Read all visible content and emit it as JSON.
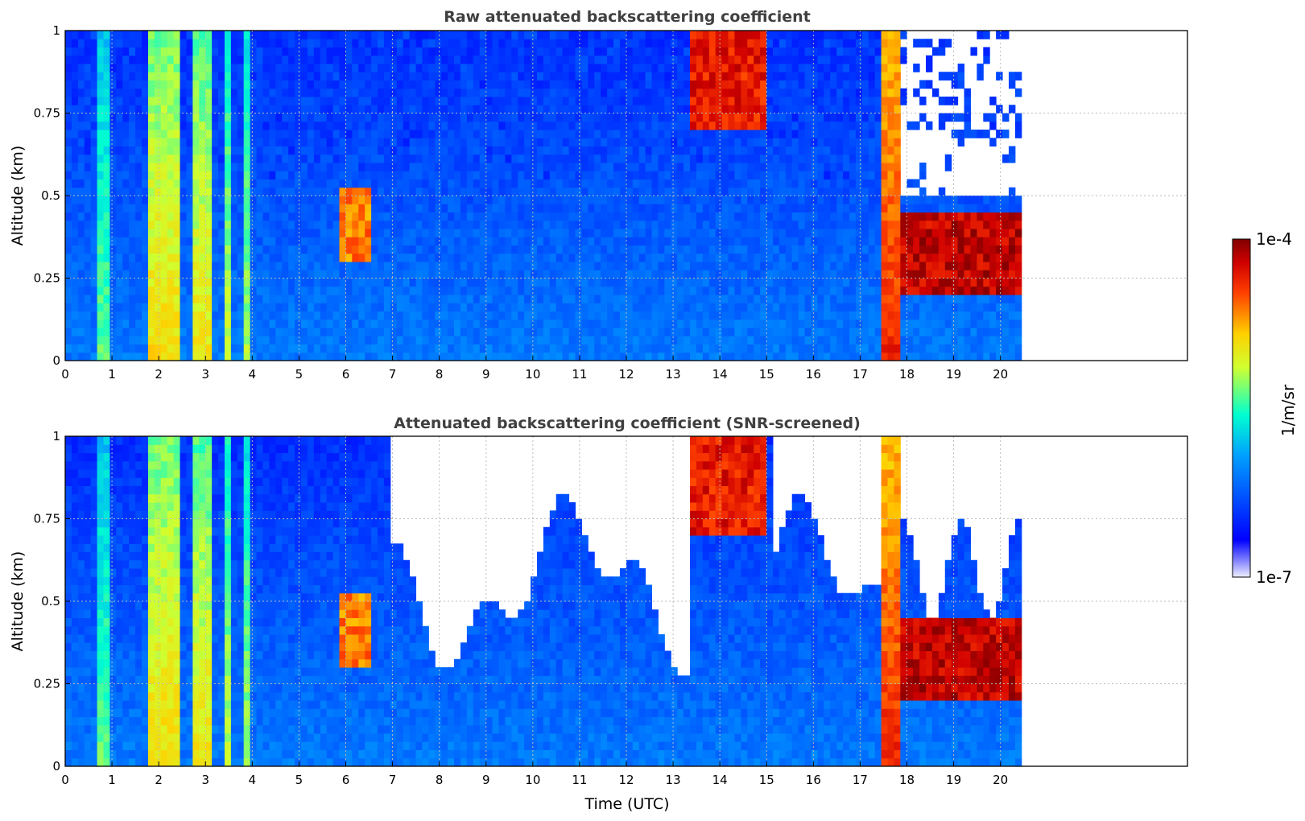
{
  "chart_data": [
    {
      "type": "heatmap",
      "title": "Raw attenuated backscattering coefficient",
      "xlabel": "",
      "ylabel": "Altitude (km)",
      "xlim": [
        0,
        24
      ],
      "ylim": [
        0,
        1
      ],
      "xticks": [
        "0",
        "1",
        "2",
        "3",
        "4",
        "5",
        "6",
        "7",
        "8",
        "9",
        "10",
        "11",
        "12",
        "13",
        "14",
        "15",
        "16",
        "17",
        "18",
        "19",
        "20"
      ],
      "yticks": [
        "0",
        "0.25",
        "0.5",
        "0.75",
        "1"
      ],
      "grid": true,
      "data_end_time": 20.45,
      "features": [
        {
          "kind": "column",
          "x": [
            0.7,
            0.9
          ],
          "level": 0.55
        },
        {
          "kind": "column",
          "x": [
            1.75,
            2.45
          ],
          "level": 0.7
        },
        {
          "kind": "column",
          "x": [
            2.75,
            3.15
          ],
          "level": 0.68
        },
        {
          "kind": "column",
          "x": [
            3.4,
            3.6
          ],
          "level": 0.62
        },
        {
          "kind": "column",
          "x": [
            3.8,
            4.0
          ],
          "level": 0.6
        },
        {
          "kind": "aerosol_blob",
          "x": [
            5.8,
            6.6
          ],
          "y": [
            0.3,
            0.52
          ],
          "level": 0.85
        },
        {
          "kind": "cloud",
          "x": [
            13.4,
            15.0
          ],
          "y": [
            0.7,
            1.0
          ],
          "level": 0.95
        },
        {
          "kind": "column",
          "x": [
            17.45,
            17.9
          ],
          "level": 0.88
        },
        {
          "kind": "cloud",
          "x": [
            17.9,
            20.4
          ],
          "y": [
            0.2,
            0.45
          ],
          "level": 1.0
        }
      ]
    },
    {
      "type": "heatmap",
      "title": "Attenuated backscattering coefficient (SNR-screened)",
      "xlabel": "Time (UTC)",
      "ylabel": "Altitude (km)",
      "xlim": [
        0,
        24
      ],
      "ylim": [
        0,
        1
      ],
      "xticks": [
        "0",
        "1",
        "2",
        "3",
        "4",
        "5",
        "6",
        "7",
        "8",
        "9",
        "10",
        "11",
        "12",
        "13",
        "14",
        "15",
        "16",
        "17",
        "18",
        "19",
        "20"
      ],
      "yticks": [
        "0",
        "0.25",
        "0.5",
        "0.75",
        "1"
      ],
      "grid": true,
      "data_end_time": 20.45,
      "screened": true,
      "features": [
        {
          "kind": "column",
          "x": [
            0.7,
            0.9
          ],
          "level": 0.55
        },
        {
          "kind": "column",
          "x": [
            1.75,
            2.45
          ],
          "level": 0.7
        },
        {
          "kind": "column",
          "x": [
            2.75,
            3.15
          ],
          "level": 0.68
        },
        {
          "kind": "column",
          "x": [
            3.4,
            3.6
          ],
          "level": 0.62
        },
        {
          "kind": "column",
          "x": [
            3.8,
            4.0
          ],
          "level": 0.6
        },
        {
          "kind": "aerosol_blob",
          "x": [
            5.8,
            6.6
          ],
          "y": [
            0.3,
            0.52
          ],
          "level": 0.85
        },
        {
          "kind": "cloud",
          "x": [
            13.4,
            15.0
          ],
          "y": [
            0.7,
            1.0
          ],
          "level": 0.95
        },
        {
          "kind": "column",
          "x": [
            17.45,
            17.9
          ],
          "level": 0.88
        },
        {
          "kind": "cloud",
          "x": [
            17.9,
            20.4
          ],
          "y": [
            0.2,
            0.45
          ],
          "level": 1.0
        }
      ]
    }
  ],
  "colorbar": {
    "label": "1/m/sr",
    "max_label": "1e-4",
    "min_label": "1e-7",
    "scale": "log",
    "range": [
      1e-07,
      0.0001
    ],
    "colormap": "jet"
  }
}
